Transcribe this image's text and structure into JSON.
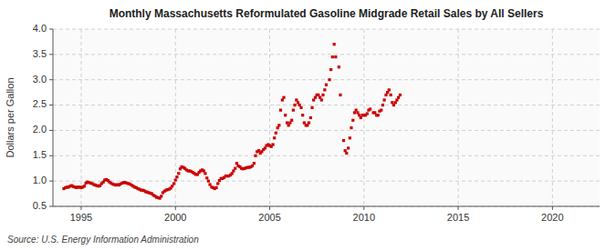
{
  "chart_data": {
    "type": "scatter",
    "title": "Monthly Massachusetts Reformulated Gasoline Midgrade Retail Sales by All Sellers",
    "y_label": "Dollars per Gallon",
    "annotations": [
      "Source: U.S. Energy Information Administration"
    ],
    "color": "#CC0000",
    "marker": "square",
    "grid": true,
    "xlim": [
      1993.5,
      2022.5
    ],
    "ylim": [
      0.5,
      4.0
    ],
    "xticks": [
      1995,
      2000,
      2005,
      2010,
      2015,
      2020
    ],
    "yticks": [
      0.5,
      {
        "value": 1.0,
        "label": "1.0"
      },
      1.5,
      {
        "value": 2.0,
        "label": "2.0"
      },
      2.5,
      {
        "value": 3.0,
        "label": "3.0"
      },
      3.5,
      {
        "value": 4.0,
        "label": "4.0"
      }
    ],
    "x": [
      1994.08,
      1994.17,
      1994.25,
      1994.33,
      1994.42,
      1994.5,
      1994.58,
      1994.67,
      1994.75,
      1994.83,
      1994.92,
      1995.0,
      1995.08,
      1995.17,
      1995.25,
      1995.33,
      1995.42,
      1995.5,
      1995.58,
      1995.67,
      1995.75,
      1995.83,
      1995.92,
      1996.0,
      1996.08,
      1996.17,
      1996.25,
      1996.33,
      1996.42,
      1996.5,
      1996.58,
      1996.67,
      1996.75,
      1996.83,
      1996.92,
      1997.0,
      1997.08,
      1997.17,
      1997.25,
      1997.33,
      1997.42,
      1997.5,
      1997.58,
      1997.67,
      1997.75,
      1997.83,
      1997.92,
      1998.0,
      1998.08,
      1998.17,
      1998.25,
      1998.33,
      1998.42,
      1998.5,
      1998.58,
      1998.67,
      1998.75,
      1998.83,
      1998.92,
      1999.0,
      1999.08,
      1999.17,
      1999.25,
      1999.33,
      1999.42,
      1999.5,
      1999.58,
      1999.67,
      1999.75,
      1999.83,
      1999.92,
      2000.0,
      2000.08,
      2000.17,
      2000.25,
      2000.33,
      2000.42,
      2000.5,
      2000.58,
      2000.67,
      2000.75,
      2000.83,
      2000.92,
      2001.0,
      2001.08,
      2001.17,
      2001.25,
      2001.33,
      2001.42,
      2001.5,
      2001.58,
      2001.67,
      2001.75,
      2001.83,
      2001.92,
      2002.0,
      2002.08,
      2002.17,
      2002.25,
      2002.33,
      2002.42,
      2002.5,
      2002.58,
      2002.67,
      2002.75,
      2002.83,
      2002.92,
      2003.0,
      2003.08,
      2003.17,
      2003.25,
      2003.33,
      2003.42,
      2003.5,
      2003.58,
      2003.67,
      2003.75,
      2003.83,
      2003.92,
      2004.0,
      2004.08,
      2004.17,
      2004.25,
      2004.33,
      2004.42,
      2004.5,
      2004.58,
      2004.67,
      2004.75,
      2004.83,
      2004.92,
      2005.0,
      2005.08,
      2005.17,
      2005.25,
      2005.33,
      2005.42,
      2005.5,
      2005.58,
      2005.67,
      2005.75,
      2005.83,
      2005.92,
      2006.0,
      2006.08,
      2006.17,
      2006.25,
      2006.33,
      2006.42,
      2006.5,
      2006.58,
      2006.67,
      2006.75,
      2006.83,
      2006.92,
      2007.0,
      2007.08,
      2007.17,
      2007.25,
      2007.33,
      2007.42,
      2007.5,
      2007.58,
      2007.67,
      2007.75,
      2007.83,
      2007.92,
      2008.0,
      2008.17,
      2008.25,
      2008.33,
      2008.42,
      2008.5,
      2008.67,
      2008.75,
      2008.92,
      2009.0,
      2009.08,
      2009.17,
      2009.25,
      2009.33,
      2009.42,
      2009.5,
      2009.58,
      2009.67,
      2009.75,
      2009.83,
      2009.92,
      2010.0,
      2010.08,
      2010.17,
      2010.25,
      2010.33,
      2010.5,
      2010.58,
      2010.67,
      2010.75,
      2010.83,
      2010.92,
      2011.0,
      2011.08,
      2011.17,
      2011.25,
      2011.33,
      2011.42,
      2011.5,
      2011.58,
      2011.67,
      2011.75,
      2011.83,
      2011.92
    ],
    "values": [
      0.85,
      0.87,
      0.88,
      0.88,
      0.9,
      0.91,
      0.89,
      0.88,
      0.87,
      0.88,
      0.88,
      0.87,
      0.88,
      0.9,
      0.96,
      0.98,
      0.97,
      0.96,
      0.95,
      0.93,
      0.92,
      0.91,
      0.9,
      0.91,
      0.95,
      0.98,
      1.02,
      1.03,
      1.01,
      0.98,
      0.96,
      0.94,
      0.93,
      0.92,
      0.93,
      0.92,
      0.94,
      0.96,
      0.97,
      0.97,
      0.96,
      0.95,
      0.94,
      0.92,
      0.9,
      0.88,
      0.87,
      0.85,
      0.84,
      0.82,
      0.82,
      0.81,
      0.79,
      0.78,
      0.77,
      0.76,
      0.75,
      0.72,
      0.7,
      0.68,
      0.67,
      0.66,
      0.7,
      0.77,
      0.8,
      0.82,
      0.83,
      0.84,
      0.86,
      0.9,
      0.95,
      1.02,
      1.08,
      1.15,
      1.24,
      1.28,
      1.27,
      1.25,
      1.22,
      1.2,
      1.2,
      1.19,
      1.17,
      1.15,
      1.13,
      1.13,
      1.17,
      1.2,
      1.22,
      1.2,
      1.15,
      1.06,
      1.0,
      0.93,
      0.88,
      0.87,
      0.85,
      0.87,
      0.95,
      1.01,
      1.05,
      1.05,
      1.07,
      1.1,
      1.1,
      1.1,
      1.12,
      1.15,
      1.2,
      1.25,
      1.35,
      1.3,
      1.28,
      1.25,
      1.24,
      1.25,
      1.26,
      1.27,
      1.27,
      1.28,
      1.3,
      1.35,
      1.5,
      1.58,
      1.6,
      1.55,
      1.58,
      1.62,
      1.65,
      1.7,
      1.72,
      1.7,
      1.68,
      1.72,
      1.85,
      1.95,
      2.05,
      2.1,
      2.4,
      2.6,
      2.65,
      2.3,
      2.15,
      2.1,
      2.15,
      2.2,
      2.4,
      2.5,
      2.6,
      2.55,
      2.5,
      2.45,
      2.3,
      2.15,
      2.1,
      2.1,
      2.15,
      2.25,
      2.45,
      2.6,
      2.65,
      2.7,
      2.7,
      2.65,
      2.6,
      2.7,
      2.8,
      2.9,
      3.0,
      3.2,
      3.45,
      3.7,
      3.45,
      3.25,
      2.7,
      1.8,
      1.6,
      1.55,
      1.65,
      1.85,
      2.05,
      2.2,
      2.35,
      2.4,
      2.35,
      2.3,
      2.25,
      2.3,
      2.3,
      2.3,
      2.33,
      2.4,
      2.42,
      2.35,
      2.35,
      2.3,
      2.3,
      2.38,
      2.4,
      2.5,
      2.6,
      2.7,
      2.75,
      2.8,
      2.7,
      2.55,
      2.5,
      2.55,
      2.6,
      2.65,
      2.7
    ]
  }
}
